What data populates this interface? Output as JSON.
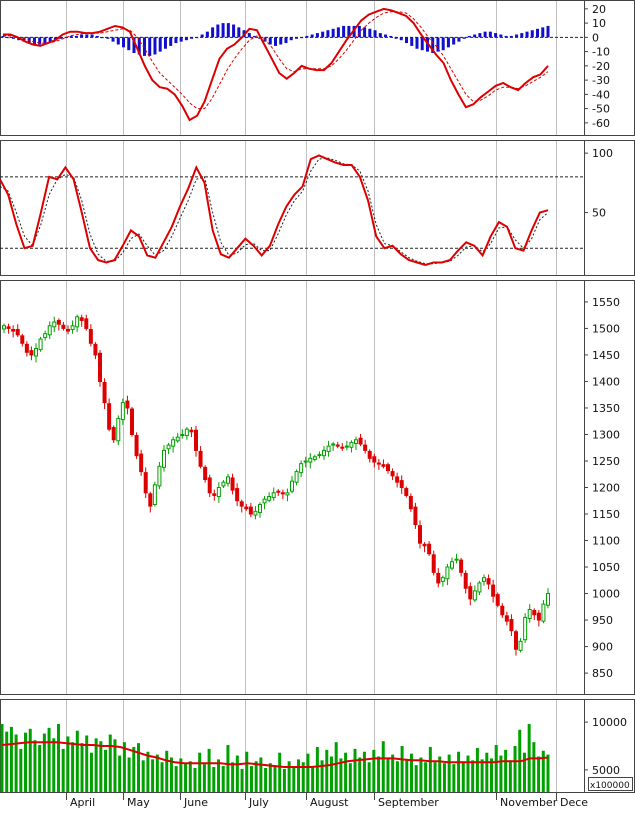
{
  "chart_data": {
    "type": "financial-multi-panel",
    "months": [
      "April",
      "May",
      "June",
      "July",
      "August",
      "September",
      "November",
      "Dece"
    ],
    "volume_unit_label": "x100000",
    "panels": [
      {
        "id": "macd",
        "type": "macd",
        "ylim": [
          -65,
          22
        ],
        "yticks": [
          20,
          10,
          0,
          -10,
          -20,
          -30,
          -40,
          -50,
          -60
        ],
        "histogram_color": "#1010cc",
        "macd_color": "#dd0000",
        "signal_color": "#dd0000",
        "histogram": [
          1,
          0,
          -1,
          -2,
          -3,
          -4,
          -5,
          -5,
          -4,
          -3,
          -2,
          -1,
          0,
          1,
          1,
          2,
          2,
          2,
          1,
          0,
          -1,
          -3,
          -5,
          -7,
          -9,
          -11,
          -12,
          -13,
          -13,
          -12,
          -10,
          -8,
          -6,
          -4,
          -3,
          -2,
          -1,
          0,
          2,
          4,
          7,
          9,
          10,
          10,
          9,
          7,
          5,
          3,
          1,
          -1,
          -3,
          -5,
          -6,
          -5,
          -4,
          -2,
          -1,
          0,
          1,
          2,
          3,
          4,
          5,
          6,
          7,
          8,
          8,
          8,
          8,
          7,
          6,
          5,
          3,
          2,
          1,
          -1,
          -2,
          -4,
          -6,
          -8,
          -9,
          -10,
          -11,
          -10,
          -9,
          -7,
          -5,
          -3,
          -1,
          1,
          2,
          3,
          4,
          4,
          3,
          2,
          1,
          1,
          2,
          3,
          4,
          5,
          6,
          7,
          8
        ],
        "macd": [
          2,
          2,
          0,
          -3,
          -5,
          -6,
          -4,
          -2,
          2,
          4,
          4,
          3,
          3,
          4,
          6,
          8,
          7,
          4,
          -8,
          -20,
          -30,
          -35,
          -36,
          -40,
          -48,
          -58,
          -55,
          -45,
          -30,
          -15,
          -8,
          -5,
          0,
          6,
          5,
          -5,
          -15,
          -25,
          -29,
          -25,
          -20,
          -22,
          -23,
          -23,
          -18,
          -10,
          -2,
          5,
          12,
          16,
          18,
          20,
          19,
          17,
          15,
          10,
          2,
          -5,
          -12,
          -18,
          -30,
          -40,
          -49,
          -47,
          -42,
          -38,
          -34,
          -32,
          -35,
          -37,
          -32,
          -28,
          -26,
          -20
        ],
        "signal": [
          1,
          1,
          0,
          -1,
          -3,
          -4,
          -4,
          -3,
          -1,
          1,
          2,
          3,
          3,
          3,
          4,
          5,
          6,
          5,
          0,
          -8,
          -17,
          -25,
          -30,
          -35,
          -40,
          -46,
          -50,
          -50,
          -43,
          -33,
          -23,
          -15,
          -8,
          -2,
          1,
          -1,
          -7,
          -15,
          -22,
          -24,
          -22,
          -22,
          -22,
          -22,
          -20,
          -15,
          -9,
          -2,
          5,
          10,
          14,
          17,
          18,
          18,
          17,
          13,
          7,
          0,
          -6,
          -13,
          -22,
          -31,
          -40,
          -45,
          -44,
          -41,
          -37,
          -35,
          -35,
          -36,
          -34,
          -31,
          -28,
          -24
        ]
      },
      {
        "id": "stochastic",
        "type": "stochastic",
        "ylim": [
          0,
          106
        ],
        "yticks": [
          100,
          50
        ],
        "reference_lines": [
          80,
          20
        ],
        "k": [
          78,
          65,
          40,
          20,
          22,
          50,
          80,
          78,
          88,
          78,
          50,
          20,
          10,
          8,
          10,
          22,
          35,
          30,
          14,
          12,
          25,
          38,
          55,
          70,
          88,
          75,
          35,
          15,
          12,
          20,
          28,
          22,
          14,
          22,
          40,
          55,
          65,
          72,
          95,
          98,
          95,
          92,
          90,
          90,
          80,
          60,
          30,
          20,
          22,
          15,
          10,
          8,
          6,
          8,
          8,
          10,
          18,
          25,
          22,
          14,
          30,
          42,
          38,
          20,
          18,
          35,
          50,
          52
        ],
        "d": [
          72,
          68,
          50,
          30,
          22,
          40,
          65,
          78,
          82,
          80,
          60,
          32,
          15,
          9,
          9,
          16,
          28,
          32,
          22,
          14,
          18,
          30,
          45,
          60,
          78,
          80,
          50,
          25,
          14,
          16,
          23,
          24,
          18,
          18,
          32,
          48,
          60,
          68,
          85,
          95,
          96,
          94,
          91,
          90,
          85,
          68,
          40,
          24,
          22,
          17,
          12,
          9,
          7,
          7,
          8,
          9,
          14,
          21,
          22,
          17,
          24,
          37,
          38,
          27,
          20,
          28,
          44,
          50
        ]
      },
      {
        "id": "price",
        "type": "candlestick",
        "ylim": [
          820,
          1580
        ],
        "yticks": [
          1550,
          1500,
          1450,
          1400,
          1350,
          1300,
          1250,
          1200,
          1150,
          1100,
          1050,
          1000,
          950,
          900,
          850
        ],
        "up_color": "#00a000",
        "down_color": "#dd0000",
        "close": [
          1505,
          1500,
          1495,
          1488,
          1472,
          1455,
          1450,
          1462,
          1480,
          1490,
          1505,
          1512,
          1508,
          1500,
          1495,
          1505,
          1522,
          1515,
          1500,
          1472,
          1450,
          1400,
          1360,
          1310,
          1290,
          1330,
          1360,
          1350,
          1300,
          1260,
          1230,
          1190,
          1165,
          1205,
          1240,
          1270,
          1280,
          1290,
          1295,
          1300,
          1310,
          1305,
          1270,
          1240,
          1215,
          1190,
          1185,
          1200,
          1210,
          1220,
          1195,
          1175,
          1165,
          1160,
          1150,
          1155,
          1168,
          1178,
          1183,
          1190,
          1192,
          1188,
          1190,
          1212,
          1230,
          1245,
          1250,
          1255,
          1258,
          1262,
          1270,
          1278,
          1282,
          1278,
          1275,
          1278,
          1285,
          1290,
          1282,
          1270,
          1255,
          1248,
          1245,
          1240,
          1232,
          1222,
          1210,
          1200,
          1185,
          1160,
          1130,
          1095,
          1090,
          1075,
          1040,
          1020,
          1030,
          1050,
          1060,
          1065,
          1040,
          1010,
          990,
          1005,
          1020,
          1030,
          1018,
          995,
          978,
          960,
          948,
          930,
          895,
          910,
          955,
          970,
          960,
          950,
          980,
          1000
        ]
      },
      {
        "id": "volume",
        "type": "volume",
        "ylim": [
          3000,
          12000
        ],
        "yticks": [
          10000,
          5000
        ],
        "bar_color": "#00a000",
        "ma_color": "#dd0000",
        "values": [
          9800,
          9000,
          9500,
          8700,
          7200,
          8900,
          9300,
          8100,
          7600,
          8800,
          9400,
          8300,
          9800,
          7200,
          8500,
          7900,
          9100,
          7800,
          8600,
          6800,
          8300,
          8000,
          7100,
          8700,
          8200,
          6500,
          7900,
          6300,
          7400,
          7800,
          6000,
          6900,
          6100,
          6600,
          5800,
          7000,
          6300,
          5400,
          6200,
          5700,
          5900,
          5200,
          6800,
          5600,
          7200,
          5300,
          6100,
          5400,
          7600,
          5800,
          6500,
          5100,
          6900,
          5400,
          5900,
          6300,
          5200,
          5700,
          5500,
          6800,
          5100,
          5900,
          5300,
          6100,
          5800,
          6700,
          5300,
          7400,
          6000,
          7100,
          6400,
          7900,
          6200,
          6800,
          5700,
          7200,
          6300,
          6900,
          5800,
          7100,
          6400,
          8000,
          6300,
          6600,
          5900,
          7500,
          6000,
          6700,
          5500,
          6300,
          5800,
          7400,
          5800,
          6400,
          5700,
          6600,
          5600,
          6900,
          5900,
          6500,
          6000,
          7300,
          6100,
          6800,
          6200,
          7600,
          6500,
          7100,
          6000,
          7500,
          9200,
          6800,
          9800,
          7900,
          6400,
          7000,
          6600
        ],
        "ma": [
          7600,
          7700,
          7800,
          7900,
          7900,
          7900,
          7900,
          7800,
          7700,
          7600,
          7600,
          7500,
          7500,
          7400,
          7100,
          6800,
          6500,
          6300,
          6000,
          5800,
          5700,
          5700,
          5700,
          5700,
          5700,
          5600,
          5600,
          5700,
          5600,
          5500,
          5400,
          5300,
          5300,
          5300,
          5300,
          5400,
          5500,
          5700,
          5900,
          6000,
          6100,
          6200,
          6200,
          6200,
          6100,
          6000,
          6000,
          5900,
          5900,
          5800,
          5800,
          5800,
          5800,
          5800,
          5800,
          5900,
          5900,
          5900,
          6200,
          6200,
          6300
        ]
      }
    ]
  }
}
